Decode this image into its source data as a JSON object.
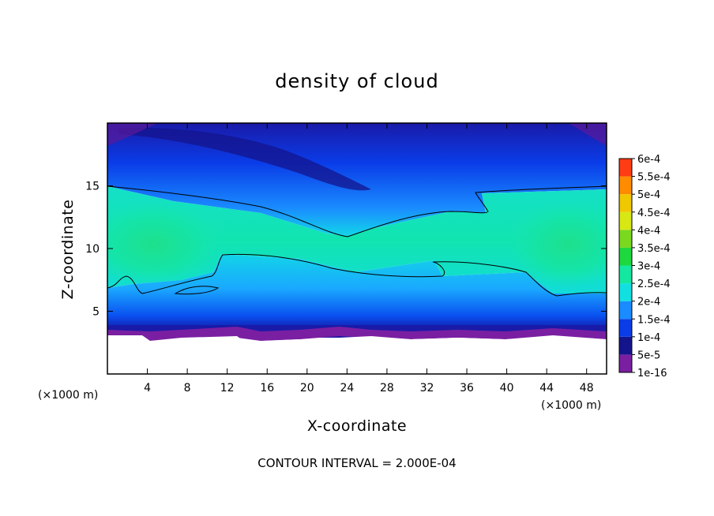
{
  "chart_data": {
    "type": "heatmap",
    "title": "density of cloud",
    "xlabel": "X-coordinate",
    "ylabel": "Z-coordinate",
    "x_unit": "(×1000 m)",
    "y_unit": "(×1000 m)",
    "xlim": [
      0,
      50
    ],
    "ylim": [
      0,
      20
    ],
    "x_ticks": [
      4,
      8,
      12,
      16,
      20,
      24,
      28,
      32,
      36,
      40,
      44,
      48
    ],
    "y_ticks": [
      5,
      10,
      15
    ],
    "x_tick_labels": [
      "4",
      "8",
      "12",
      "16",
      "20",
      "24",
      "28",
      "32",
      "36",
      "40",
      "44",
      "48"
    ],
    "y_tick_labels": [
      "5",
      "10",
      "15"
    ],
    "colorbar": {
      "levels": [
        "1e-16",
        "5e-5",
        "1e-4",
        "1.5e-4",
        "2e-4",
        "2.5e-4",
        "3e-4",
        "3.5e-4",
        "4e-4",
        "4.5e-4",
        "5e-4",
        "5.5e-4",
        "6e-4"
      ],
      "colors": [
        "#7a1fa2",
        "#14148c",
        "#0a3ce8",
        "#1a8cff",
        "#12e0e0",
        "#14e8a0",
        "#1ed840",
        "#7ad81e",
        "#d8e814",
        "#f0c800",
        "#ff8c00",
        "#ff3c14",
        "#f08a8a"
      ]
    },
    "contour_interval_text": "CONTOUR INTERVAL = 2.000E-04",
    "field_regions": [
      {
        "name": "cloud-free lower layer",
        "z_range": [
          0,
          3
        ],
        "value": "none"
      },
      {
        "name": "cloud base band",
        "z_range": [
          3,
          4.2
        ],
        "value": "1e-16 to 1e-4"
      },
      {
        "name": "lower cloud",
        "z_range": [
          4.2,
          9.5
        ],
        "value": "1e-4 to 2e-4"
      },
      {
        "name": "mid-level maximum (left)",
        "center": [
          3,
          10.5
        ],
        "value": "2.5e-4"
      },
      {
        "name": "mid-level maximum (right)",
        "center": [
          47,
          10.8
        ],
        "value": "2.5e-4"
      },
      {
        "name": "upper cloud",
        "z_range": [
          15,
          20
        ],
        "value": "5e-5 to 1.5e-4"
      }
    ]
  }
}
